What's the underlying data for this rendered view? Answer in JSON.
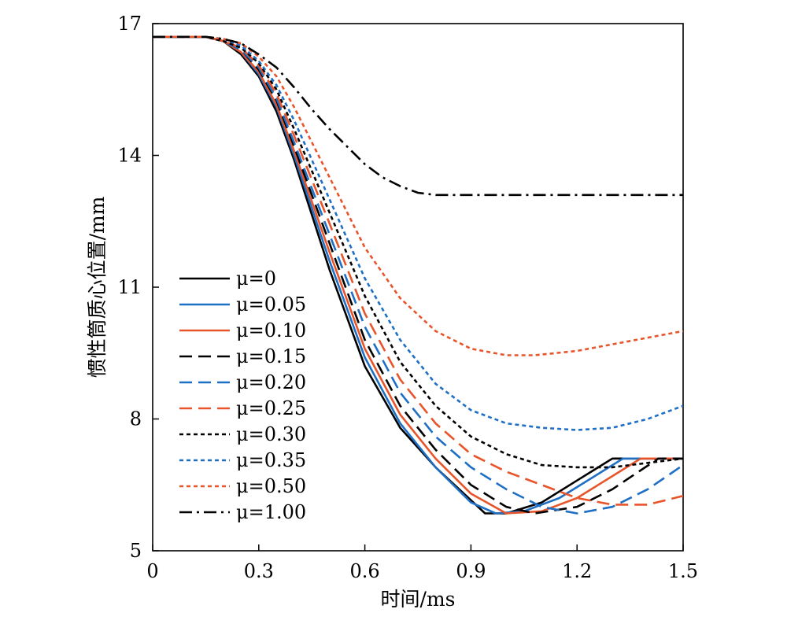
{
  "chart_data": {
    "type": "line",
    "xlabel": "时间/ms",
    "ylabel": "惯性筒质心位置/mm",
    "xlim": [
      0,
      1.5
    ],
    "ylim": [
      5,
      17
    ],
    "xticks": [
      "0",
      "0.3",
      "0.6",
      "0.9",
      "1.2",
      "1.5"
    ],
    "yticks": [
      "5",
      "8",
      "11",
      "14",
      "17"
    ],
    "grid": false,
    "legend_position": "lower-left",
    "series": [
      {
        "name": "μ=0",
        "color": "#000000",
        "dash": "solid",
        "x": [
          0,
          0.15,
          0.2,
          0.25,
          0.3,
          0.35,
          0.4,
          0.5,
          0.6,
          0.7,
          0.8,
          0.94,
          1.0,
          1.1,
          1.2,
          1.3,
          1.5
        ],
        "y": [
          16.7,
          16.7,
          16.6,
          16.3,
          15.8,
          15.0,
          13.9,
          11.4,
          9.2,
          7.8,
          6.9,
          5.85,
          5.85,
          6.1,
          6.6,
          7.1,
          7.1
        ]
      },
      {
        "name": "μ=0.05",
        "color": "#1f6fc5",
        "dash": "solid",
        "x": [
          0,
          0.15,
          0.2,
          0.25,
          0.3,
          0.35,
          0.4,
          0.5,
          0.6,
          0.7,
          0.8,
          0.9,
          0.97,
          1.05,
          1.15,
          1.25,
          1.33,
          1.5
        ],
        "y": [
          16.7,
          16.7,
          16.6,
          16.35,
          15.85,
          15.1,
          14.0,
          11.6,
          9.4,
          7.9,
          6.9,
          6.1,
          5.85,
          5.9,
          6.2,
          6.7,
          7.1,
          7.1
        ]
      },
      {
        "name": "μ=0.10",
        "color": "#e8552b",
        "dash": "solid",
        "x": [
          0,
          0.15,
          0.2,
          0.25,
          0.3,
          0.35,
          0.4,
          0.5,
          0.6,
          0.7,
          0.8,
          0.9,
          1.0,
          1.1,
          1.2,
          1.3,
          1.38,
          1.5
        ],
        "y": [
          16.7,
          16.7,
          16.6,
          16.35,
          15.9,
          15.15,
          14.1,
          11.8,
          9.6,
          8.1,
          7.1,
          6.3,
          5.85,
          5.9,
          6.2,
          6.7,
          7.1,
          7.1
        ]
      },
      {
        "name": "μ=0.15",
        "color": "#000000",
        "dash": "long",
        "x": [
          0,
          0.15,
          0.2,
          0.25,
          0.3,
          0.35,
          0.4,
          0.5,
          0.6,
          0.7,
          0.8,
          0.9,
          1.0,
          1.08,
          1.2,
          1.3,
          1.43,
          1.5
        ],
        "y": [
          16.7,
          16.7,
          16.6,
          16.4,
          15.95,
          15.25,
          14.2,
          12.0,
          9.8,
          8.3,
          7.3,
          6.5,
          6.0,
          5.85,
          6.0,
          6.4,
          7.1,
          7.1
        ]
      },
      {
        "name": "μ=0.20",
        "color": "#1f6fc5",
        "dash": "long",
        "x": [
          0,
          0.15,
          0.2,
          0.25,
          0.3,
          0.35,
          0.4,
          0.5,
          0.6,
          0.7,
          0.8,
          0.9,
          1.0,
          1.1,
          1.2,
          1.3,
          1.4,
          1.5
        ],
        "y": [
          16.7,
          16.7,
          16.6,
          16.4,
          16.0,
          15.3,
          14.3,
          12.2,
          10.1,
          8.6,
          7.6,
          6.9,
          6.4,
          6.0,
          5.85,
          6.0,
          6.4,
          6.95
        ]
      },
      {
        "name": "μ=0.25",
        "color": "#e8552b",
        "dash": "long",
        "x": [
          0,
          0.15,
          0.2,
          0.25,
          0.3,
          0.35,
          0.4,
          0.5,
          0.6,
          0.7,
          0.8,
          0.9,
          1.0,
          1.1,
          1.2,
          1.3,
          1.4,
          1.5
        ],
        "y": [
          16.7,
          16.7,
          16.6,
          16.45,
          16.05,
          15.4,
          14.45,
          12.45,
          10.4,
          8.9,
          7.9,
          7.2,
          6.8,
          6.5,
          6.2,
          6.05,
          6.05,
          6.25
        ]
      },
      {
        "name": "μ=0.30",
        "color": "#000000",
        "dash": "short",
        "x": [
          0,
          0.15,
          0.2,
          0.25,
          0.3,
          0.35,
          0.4,
          0.5,
          0.6,
          0.7,
          0.8,
          0.9,
          1.0,
          1.1,
          1.2,
          1.3,
          1.4,
          1.5
        ],
        "y": [
          16.7,
          16.7,
          16.6,
          16.45,
          16.1,
          15.5,
          14.6,
          12.7,
          10.8,
          9.3,
          8.3,
          7.6,
          7.2,
          6.95,
          6.9,
          6.9,
          7.0,
          7.1
        ]
      },
      {
        "name": "μ=0.35",
        "color": "#1f6fc5",
        "dash": "short",
        "x": [
          0,
          0.15,
          0.2,
          0.25,
          0.3,
          0.35,
          0.4,
          0.5,
          0.6,
          0.7,
          0.8,
          0.9,
          1.0,
          1.1,
          1.2,
          1.3,
          1.4,
          1.5
        ],
        "y": [
          16.7,
          16.7,
          16.65,
          16.5,
          16.15,
          15.6,
          14.8,
          13.0,
          11.2,
          9.8,
          8.8,
          8.2,
          7.9,
          7.8,
          7.75,
          7.8,
          8.0,
          8.3
        ]
      },
      {
        "name": "μ=0.50",
        "color": "#e8552b",
        "dash": "short",
        "x": [
          0,
          0.15,
          0.2,
          0.25,
          0.3,
          0.35,
          0.4,
          0.5,
          0.6,
          0.7,
          0.8,
          0.9,
          1.0,
          1.08,
          1.2,
          1.3,
          1.4,
          1.5
        ],
        "y": [
          16.7,
          16.7,
          16.65,
          16.55,
          16.25,
          15.8,
          15.1,
          13.5,
          11.9,
          10.75,
          10.0,
          9.6,
          9.45,
          9.45,
          9.55,
          9.7,
          9.85,
          10.0
        ]
      },
      {
        "name": "μ=1.00",
        "color": "#000000",
        "dash": "dashdot",
        "x": [
          0,
          0.15,
          0.2,
          0.25,
          0.3,
          0.35,
          0.4,
          0.45,
          0.5,
          0.55,
          0.6,
          0.65,
          0.7,
          0.75,
          0.8,
          0.9,
          1.0,
          1.2,
          1.5
        ],
        "y": [
          16.7,
          16.7,
          16.65,
          16.55,
          16.3,
          16.0,
          15.55,
          15.05,
          14.6,
          14.2,
          13.8,
          13.5,
          13.3,
          13.15,
          13.1,
          13.1,
          13.1,
          13.1,
          13.1
        ]
      }
    ]
  }
}
